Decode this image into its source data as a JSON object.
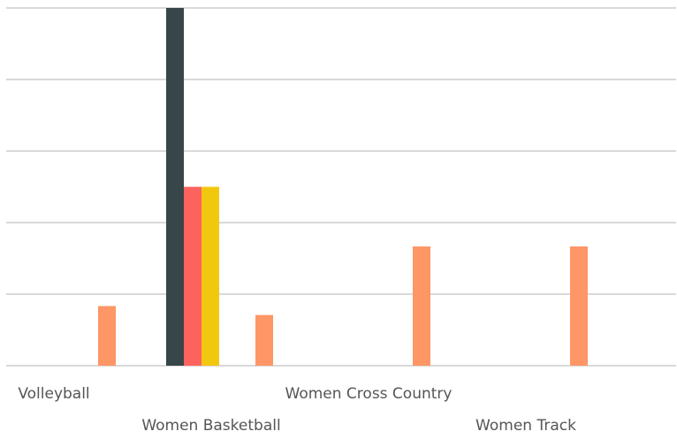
{
  "chart_data": {
    "type": "bar",
    "categories": [
      "Volleyball",
      "Women Basketball",
      "Women Cross Country",
      "Women Track"
    ],
    "series": [
      {
        "color": "#374649",
        "values": [
          null,
          6,
          null,
          null
        ]
      },
      {
        "color": "#fd625e",
        "values": [
          null,
          3,
          null,
          null
        ]
      },
      {
        "color": "#f2c80f",
        "values": [
          null,
          3,
          null,
          null
        ]
      },
      {
        "color": "#fe9666",
        "values": [
          1,
          0.85,
          2,
          2
        ]
      }
    ],
    "ylim": [
      0,
      6
    ],
    "yticks": [
      0,
      1.2,
      2.4,
      3.6,
      4.8,
      6
    ],
    "grid": true
  }
}
